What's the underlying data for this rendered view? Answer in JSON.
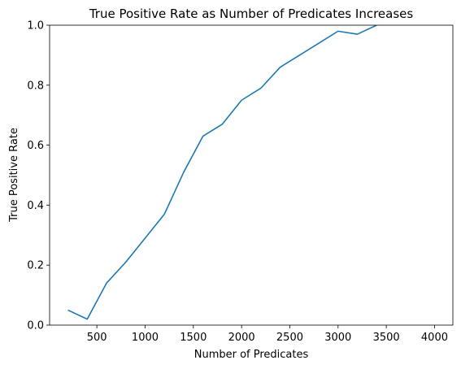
{
  "chart_data": {
    "type": "line",
    "title": "True Positive Rate as Number of Predicates Increases",
    "x_label": "Number of Predicates",
    "y_label": "True Positive Rate",
    "x": [
      200,
      400,
      600,
      800,
      1000,
      1200,
      1400,
      1600,
      1800,
      2000,
      2200,
      2400,
      2600,
      2800,
      3000,
      3200,
      3400
    ],
    "series": [
      {
        "name": "True Positive Rate",
        "color": "#1f77b4",
        "values": [
          0.05,
          0.02,
          0.14,
          0.21,
          0.29,
          0.37,
          0.51,
          0.63,
          0.67,
          0.75,
          0.79,
          0.86,
          0.9,
          0.94,
          0.98,
          0.97,
          1.0
        ]
      }
    ],
    "xlim": [
      10,
      4190
    ],
    "ylim": [
      0,
      1
    ],
    "xticks": [
      500,
      1000,
      1500,
      2000,
      2500,
      3000,
      3500,
      4000
    ],
    "yticks": [
      {
        "value": 0,
        "label": "0.0"
      },
      {
        "value": 0.2,
        "label": "0.2"
      },
      {
        "value": 0.4,
        "label": "0.4"
      },
      {
        "value": 0.6,
        "label": "0.6"
      },
      {
        "value": 0.8,
        "label": "0.8"
      },
      {
        "value": 1,
        "label": "1.0"
      }
    ],
    "grid": false
  }
}
